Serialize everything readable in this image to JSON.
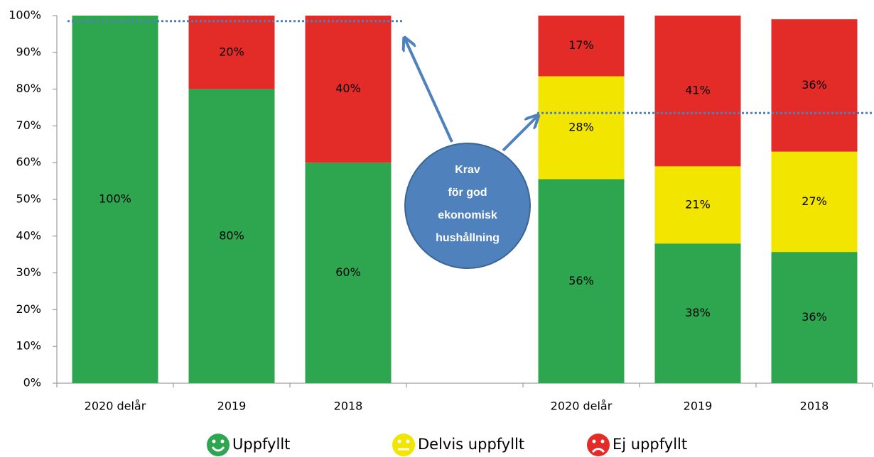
{
  "chart_data": {
    "type": "stacked_bar",
    "categories": [
      "2020 delår",
      "2019",
      "2018",
      null,
      "2020 delår",
      "2019",
      "2018"
    ],
    "series": [
      {
        "name": "Uppfyllt",
        "color": "#2ea64f",
        "values": [
          100,
          80,
          60,
          null,
          55.5,
          38,
          35.7
        ],
        "value_labels": [
          "100%",
          "80%",
          "60%",
          null,
          "56%",
          "38%",
          "36%"
        ]
      },
      {
        "name": "Delvis uppfyllt",
        "color": "#f2e500",
        "values": [
          null,
          null,
          null,
          null,
          28,
          21,
          27.3
        ],
        "value_labels": [
          null,
          null,
          null,
          null,
          "28%",
          "21%",
          "27%"
        ]
      },
      {
        "name": "Ej uppfyllt",
        "color": "#e32b28",
        "values": [
          null,
          20,
          40,
          null,
          16.5,
          41,
          36
        ],
        "value_labels": [
          null,
          "20%",
          "40%",
          null,
          "17%",
          "41%",
          "36%"
        ]
      }
    ],
    "ylim": [
      0,
      100
    ],
    "yticks": [
      {
        "value": 0,
        "label": "0%"
      },
      {
        "value": 10,
        "label": "10%"
      },
      {
        "value": 20,
        "label": "20%"
      },
      {
        "value": 30,
        "label": "30%"
      },
      {
        "value": 40,
        "label": "40%"
      },
      {
        "value": 50,
        "label": "50%"
      },
      {
        "value": 60,
        "label": "60%"
      },
      {
        "value": 70,
        "label": "70%"
      },
      {
        "value": 80,
        "label": "80%"
      },
      {
        "value": 90,
        "label": "90%"
      },
      {
        "value": 100,
        "label": "100%"
      }
    ],
    "reference_lines": [
      98.5,
      73.5
    ],
    "annotation_lines": [
      "Krav",
      "för god",
      "ekonomisk",
      "hushållning"
    ],
    "legend": "bottom"
  }
}
